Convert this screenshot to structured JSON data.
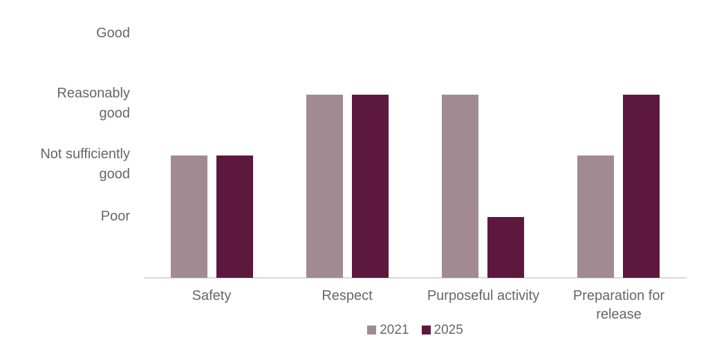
{
  "chart": {
    "background_color": "#ffffff",
    "text_color": "#666666",
    "axis_line_color": "#d9d9d9"
  },
  "chart_data": {
    "type": "bar",
    "title": "",
    "categories": [
      "Safety",
      "Respect",
      "Purposeful activity",
      "Preparation for release"
    ],
    "series": [
      {
        "name": "2021",
        "color": "#a18a92",
        "values": [
          2,
          3,
          3,
          2
        ],
        "ratings": [
          "Not sufficiently good",
          "Reasonably good",
          "Reasonably good",
          "Not sufficiently good"
        ]
      },
      {
        "name": "2025",
        "color": "#5d183e",
        "values": [
          2,
          3,
          1,
          3
        ],
        "ratings": [
          "Not sufficiently good",
          "Reasonably good",
          "Poor",
          "Reasonably good"
        ]
      }
    ],
    "y_tick_labels": [
      "Good",
      "Reasonably good",
      "Not sufficiently good",
      "Poor"
    ],
    "y_tick_values": [
      4,
      3,
      2,
      1
    ],
    "value_scale": {
      "1": "Poor",
      "2": "Not sufficiently good",
      "3": "Reasonably good",
      "4": "Good"
    },
    "ylim": [
      0,
      4
    ],
    "grid": false,
    "legend_position": "bottom",
    "legend_entries": [
      "2021",
      "2025"
    ]
  }
}
